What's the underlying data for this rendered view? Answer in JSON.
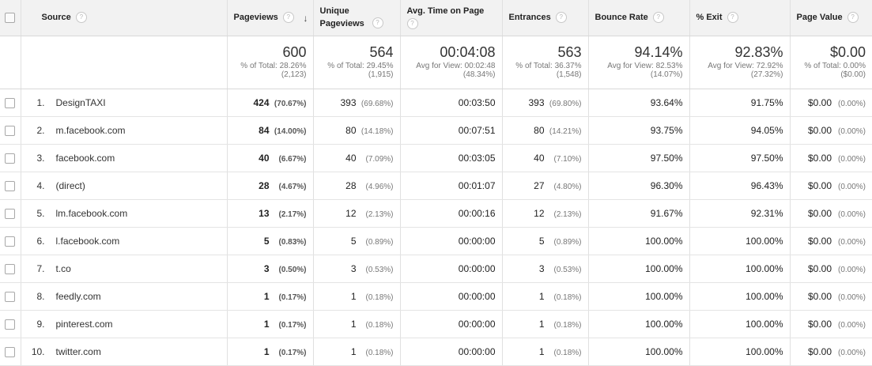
{
  "headers": {
    "source": "Source",
    "pageviews": "Pageviews",
    "unique": "Unique Pageviews",
    "avg_time": "Avg. Time on Page",
    "entrances": "Entrances",
    "bounce": "Bounce Rate",
    "exit": "% Exit",
    "page_value": "Page Value",
    "help_glyph": "?",
    "sort_glyph": "↓"
  },
  "totals": {
    "pageviews": {
      "value": "600",
      "line1": "% of Total: 28.26%",
      "line2": "(2,123)"
    },
    "unique": {
      "value": "564",
      "line1": "% of Total: 29.45%",
      "line2": "(1,915)"
    },
    "avg_time": {
      "value": "00:04:08",
      "line1": "Avg for View: 00:02:48",
      "line2": "(48.34%)"
    },
    "entrances": {
      "value": "563",
      "line1": "% of Total: 36.37%",
      "line2": "(1,548)"
    },
    "bounce": {
      "value": "94.14%",
      "line1": "Avg for View: 82.53%",
      "line2": "(14.07%)"
    },
    "exit": {
      "value": "92.83%",
      "line1": "Avg for View: 72.92%",
      "line2": "(27.32%)"
    },
    "page_value": {
      "value": "$0.00",
      "line1": "% of Total: 0.00%",
      "line2": "($0.00)"
    }
  },
  "rows": [
    {
      "n": "1.",
      "source": "DesignTAXI",
      "pv": "424",
      "pv_pct": "(70.67%)",
      "u": "393",
      "u_pct": "(69.68%)",
      "time": "00:03:50",
      "e": "393",
      "e_pct": "(69.80%)",
      "bounce": "93.64%",
      "exit": "91.75%",
      "val": "$0.00",
      "val_pct": "(0.00%)"
    },
    {
      "n": "2.",
      "source": "m.facebook.com",
      "pv": "84",
      "pv_pct": "(14.00%)",
      "u": "80",
      "u_pct": "(14.18%)",
      "time": "00:07:51",
      "e": "80",
      "e_pct": "(14.21%)",
      "bounce": "93.75%",
      "exit": "94.05%",
      "val": "$0.00",
      "val_pct": "(0.00%)"
    },
    {
      "n": "3.",
      "source": "facebook.com",
      "pv": "40",
      "pv_pct": "(6.67%)",
      "u": "40",
      "u_pct": "(7.09%)",
      "time": "00:03:05",
      "e": "40",
      "e_pct": "(7.10%)",
      "bounce": "97.50%",
      "exit": "97.50%",
      "val": "$0.00",
      "val_pct": "(0.00%)"
    },
    {
      "n": "4.",
      "source": "(direct)",
      "pv": "28",
      "pv_pct": "(4.67%)",
      "u": "28",
      "u_pct": "(4.96%)",
      "time": "00:01:07",
      "e": "27",
      "e_pct": "(4.80%)",
      "bounce": "96.30%",
      "exit": "96.43%",
      "val": "$0.00",
      "val_pct": "(0.00%)"
    },
    {
      "n": "5.",
      "source": "lm.facebook.com",
      "pv": "13",
      "pv_pct": "(2.17%)",
      "u": "12",
      "u_pct": "(2.13%)",
      "time": "00:00:16",
      "e": "12",
      "e_pct": "(2.13%)",
      "bounce": "91.67%",
      "exit": "92.31%",
      "val": "$0.00",
      "val_pct": "(0.00%)"
    },
    {
      "n": "6.",
      "source": "l.facebook.com",
      "pv": "5",
      "pv_pct": "(0.83%)",
      "u": "5",
      "u_pct": "(0.89%)",
      "time": "00:00:00",
      "e": "5",
      "e_pct": "(0.89%)",
      "bounce": "100.00%",
      "exit": "100.00%",
      "val": "$0.00",
      "val_pct": "(0.00%)"
    },
    {
      "n": "7.",
      "source": "t.co",
      "pv": "3",
      "pv_pct": "(0.50%)",
      "u": "3",
      "u_pct": "(0.53%)",
      "time": "00:00:00",
      "e": "3",
      "e_pct": "(0.53%)",
      "bounce": "100.00%",
      "exit": "100.00%",
      "val": "$0.00",
      "val_pct": "(0.00%)"
    },
    {
      "n": "8.",
      "source": "feedly.com",
      "pv": "1",
      "pv_pct": "(0.17%)",
      "u": "1",
      "u_pct": "(0.18%)",
      "time": "00:00:00",
      "e": "1",
      "e_pct": "(0.18%)",
      "bounce": "100.00%",
      "exit": "100.00%",
      "val": "$0.00",
      "val_pct": "(0.00%)"
    },
    {
      "n": "9.",
      "source": "pinterest.com",
      "pv": "1",
      "pv_pct": "(0.17%)",
      "u": "1",
      "u_pct": "(0.18%)",
      "time": "00:00:00",
      "e": "1",
      "e_pct": "(0.18%)",
      "bounce": "100.00%",
      "exit": "100.00%",
      "val": "$0.00",
      "val_pct": "(0.00%)"
    },
    {
      "n": "10.",
      "source": "twitter.com",
      "pv": "1",
      "pv_pct": "(0.17%)",
      "u": "1",
      "u_pct": "(0.18%)",
      "time": "00:00:00",
      "e": "1",
      "e_pct": "(0.18%)",
      "bounce": "100.00%",
      "exit": "100.00%",
      "val": "$0.00",
      "val_pct": "(0.00%)"
    }
  ]
}
